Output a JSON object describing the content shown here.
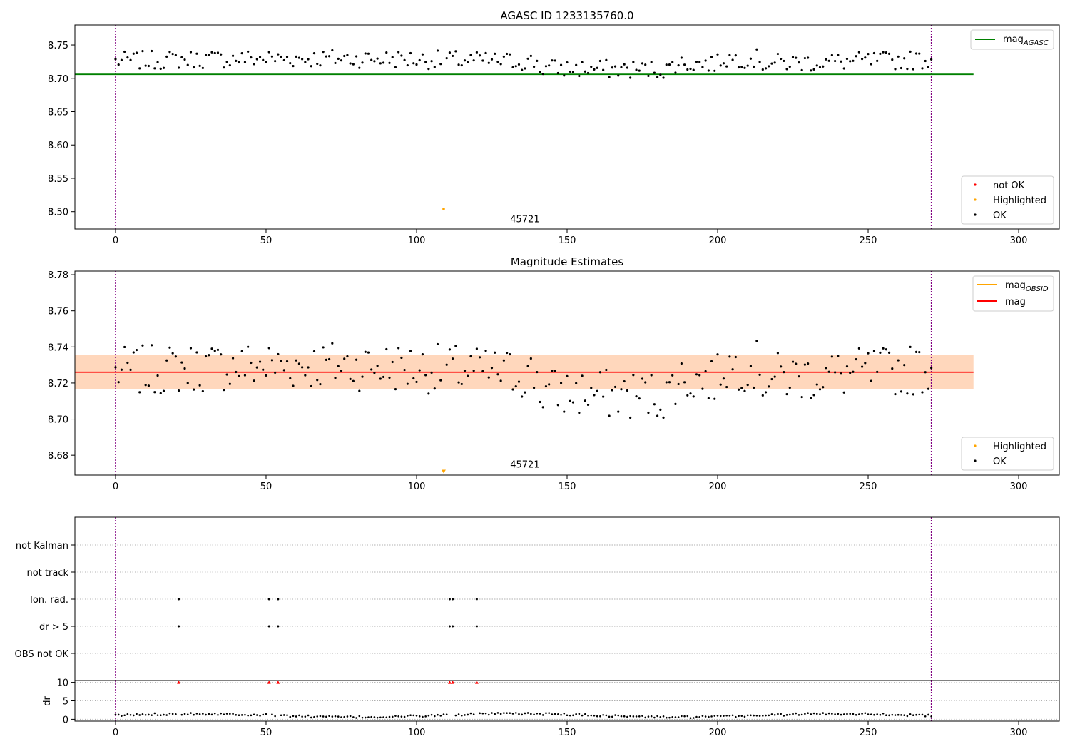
{
  "chart_data": [
    {
      "type": "scatter",
      "title": "AGASC ID 1233135760.0",
      "xlim": [
        -13.5,
        313.5
      ],
      "ylim": [
        8.474,
        8.78
      ],
      "xticks": [
        0,
        50,
        100,
        150,
        200,
        250,
        300
      ],
      "yticks": [
        8.5,
        8.55,
        8.6,
        8.65,
        8.7,
        8.75
      ],
      "ytick_labels": [
        "8.50",
        "8.55",
        "8.60",
        "8.65",
        "8.70",
        "8.75"
      ],
      "vlines": [
        0,
        271
      ],
      "hline": {
        "name": "mag_AGASC_value",
        "y": 8.706,
        "x": [
          -13.5,
          285
        ],
        "color": "#008000"
      },
      "highlighted": [
        {
          "x": 109,
          "y": 8.504
        }
      ],
      "annotation": {
        "text": "45721",
        "x": 136,
        "y": 8.48
      },
      "line_legend": {
        "label": "mag",
        "subscript": "AGASC",
        "color": "#008000"
      },
      "marker_legend": [
        {
          "label": "not OK",
          "color": "#ff0000"
        },
        {
          "label": "Highlighted",
          "color": "#ffa500"
        },
        {
          "label": "OK",
          "color": "#000000"
        }
      ],
      "grid": false
    },
    {
      "type": "scatter",
      "title": "Magnitude Estimates",
      "xlim": [
        -13.5,
        313.5
      ],
      "ylim": [
        8.669,
        8.782
      ],
      "xticks": [
        0,
        50,
        100,
        150,
        200,
        250,
        300
      ],
      "yticks": [
        8.68,
        8.7,
        8.72,
        8.74,
        8.76,
        8.78
      ],
      "ytick_labels": [
        "8.68",
        "8.70",
        "8.72",
        "8.74",
        "8.76",
        "8.78"
      ],
      "vlines": [
        0,
        271
      ],
      "mag_line": {
        "y": 8.726,
        "x": [
          -13.5,
          285
        ],
        "color": "#ff0000"
      },
      "mag_band": {
        "y0": 8.7165,
        "y1": 8.7355,
        "fill": "#ffb6c1"
      },
      "obsid_band": {
        "x": [
          -13.5,
          285
        ],
        "y0": 8.7165,
        "y1": 8.7355,
        "fill": "#ffa500"
      },
      "highlighted": [
        {
          "x": 109,
          "y": 8.67
        }
      ],
      "annotation": {
        "text": "45721",
        "x": 136,
        "y": 8.6715
      },
      "line_legend": [
        {
          "label": "mag",
          "subscript": "OBSID",
          "color": "#ffa500"
        },
        {
          "label": "mag",
          "subscript": "",
          "color": "#ff0000"
        }
      ],
      "marker_legend": [
        {
          "label": "Highlighted",
          "color": "#ffa500"
        },
        {
          "label": "OK",
          "color": "#000000"
        }
      ],
      "grid": false
    },
    {
      "type": "scatter",
      "title": "",
      "xlim": [
        -13.5,
        313.5
      ],
      "categories": [
        "not Kalman",
        "not track",
        "Ion. rad.",
        "dr > 5",
        "OBS not OK"
      ],
      "flag_points": {
        "Ion. rad.": [
          21,
          51,
          54,
          111,
          112,
          120
        ],
        "dr > 5": [
          21,
          51,
          54,
          111,
          112,
          120
        ]
      },
      "vlines": [
        0,
        271
      ],
      "grid": true
    },
    {
      "type": "scatter",
      "title": "",
      "ylabel": "dr",
      "xlim": [
        -13.5,
        313.5
      ],
      "ylim": [
        -0.5,
        10.5
      ],
      "xticks": [
        0,
        50,
        100,
        150,
        200,
        250,
        300
      ],
      "yticks": [
        0,
        5,
        10
      ],
      "clipped_points": [
        21,
        51,
        54,
        111,
        112,
        120
      ],
      "clip_value": 10,
      "vlines": [
        0,
        271
      ],
      "grid": true
    }
  ],
  "colors": {
    "ok": "#000000",
    "highlighted": "#ffa500",
    "not_ok": "#ff0000",
    "vline": "#800080",
    "agasc": "#008000",
    "mag": "#ff0000",
    "obsid": "#ffa500"
  }
}
